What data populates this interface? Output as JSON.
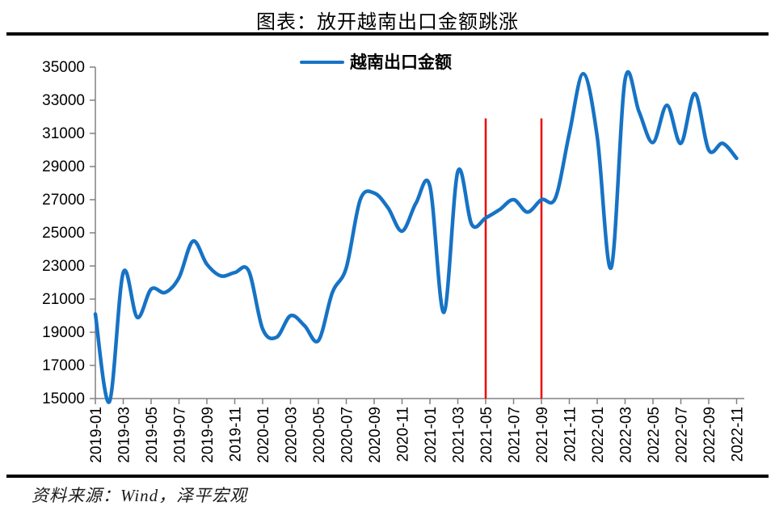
{
  "title": "图表：放开越南出口金额跳涨",
  "source": "资料来源：Wind，泽平宏观",
  "colors": {
    "line": "#1673c5",
    "marker_line": "#ee0000",
    "axis": "#808080",
    "label": "#000000"
  },
  "chart_data": {
    "type": "line",
    "title": "图表：放开越南出口金额跳涨",
    "grid": false,
    "smooth": true,
    "legend_position": "top-center",
    "ylim": [
      15000,
      35000
    ],
    "y_tick_step": 2000,
    "y_tick_labels": [
      "35000",
      "33000",
      "31000",
      "29000",
      "27000",
      "25000",
      "23000",
      "21000",
      "19000",
      "17000",
      "15000"
    ],
    "x_tick_labels": [
      "2019-01",
      "2019-03",
      "2019-05",
      "2019-07",
      "2019-09",
      "2019-11",
      "2020-01",
      "2020-03",
      "2020-05",
      "2020-07",
      "2020-09",
      "2020-11",
      "2021-01",
      "2021-03",
      "2021-05",
      "2021-07",
      "2021-09",
      "2021-11",
      "2022-01",
      "2022-03",
      "2022-05",
      "2022-07",
      "2022-09",
      "2022-11"
    ],
    "categories": [
      "2019-01",
      "2019-02",
      "2019-03",
      "2019-04",
      "2019-05",
      "2019-06",
      "2019-07",
      "2019-08",
      "2019-09",
      "2019-10",
      "2019-11",
      "2019-12",
      "2020-01",
      "2020-02",
      "2020-03",
      "2020-04",
      "2020-05",
      "2020-06",
      "2020-07",
      "2020-08",
      "2020-09",
      "2020-10",
      "2020-11",
      "2020-12",
      "2021-01",
      "2021-02",
      "2021-03",
      "2021-04",
      "2021-05",
      "2021-06",
      "2021-07",
      "2021-08",
      "2021-09",
      "2021-10",
      "2021-11",
      "2021-12",
      "2022-01",
      "2022-02",
      "2022-03",
      "2022-04",
      "2022-05",
      "2022-06",
      "2022-07",
      "2022-08",
      "2022-09",
      "2022-10",
      "2022-11"
    ],
    "series": [
      {
        "name": "越南出口金额",
        "values": [
          20100,
          14800,
          22600,
          19900,
          21600,
          21400,
          22300,
          24500,
          23100,
          22400,
          22600,
          22700,
          19200,
          18700,
          20000,
          19400,
          18500,
          21400,
          22900,
          27000,
          27400,
          26500,
          25100,
          26800,
          27800,
          20200,
          28700,
          25500,
          25900,
          26400,
          27000,
          26250,
          27000,
          27100,
          31000,
          34600,
          30800,
          22900,
          34250,
          32300,
          30450,
          32700,
          30400,
          33400,
          30000,
          30400,
          29500
        ]
      }
    ],
    "vertical_marker_lines": [
      {
        "category": "2021-05",
        "y_from": 15000,
        "y_to": 31900
      },
      {
        "category": "2021-09",
        "y_from": 15000,
        "y_to": 31900
      }
    ]
  }
}
